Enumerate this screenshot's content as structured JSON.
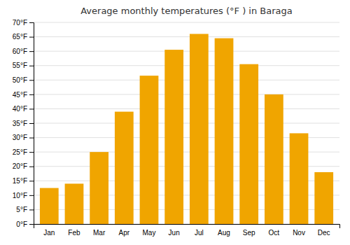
{
  "chart_data": {
    "type": "bar",
    "title": "Average monthly temperatures (°F ) in Baraga",
    "categories": [
      "Jan",
      "Feb",
      "Mar",
      "Apr",
      "May",
      "Jun",
      "Jul",
      "Aug",
      "Sep",
      "Oct",
      "Nov",
      "Dec"
    ],
    "values": [
      12.5,
      14.0,
      25.0,
      39.0,
      51.5,
      60.5,
      66.0,
      64.5,
      55.5,
      45.0,
      31.5,
      18.0
    ],
    "color": "#F0A500",
    "ylim": [
      0,
      70
    ],
    "yticks": [
      {
        "value": 0,
        "label": "0°F"
      },
      {
        "value": 5,
        "label": "5°F"
      },
      {
        "value": 10,
        "label": "10°F"
      },
      {
        "value": 15,
        "label": "15°F"
      },
      {
        "value": 20,
        "label": "20°F"
      },
      {
        "value": 25,
        "label": "25°F"
      },
      {
        "value": 30,
        "label": "30°F"
      },
      {
        "value": 35,
        "label": "35°F"
      },
      {
        "value": 40,
        "label": "40°F"
      },
      {
        "value": 45,
        "label": "45°F"
      },
      {
        "value": 50,
        "label": "50°F"
      },
      {
        "value": 55,
        "label": "55°F"
      },
      {
        "value": 60,
        "label": "60°F"
      },
      {
        "value": 65,
        "label": "65°F"
      },
      {
        "value": 70,
        "label": "70°F"
      }
    ],
    "grid": true
  }
}
